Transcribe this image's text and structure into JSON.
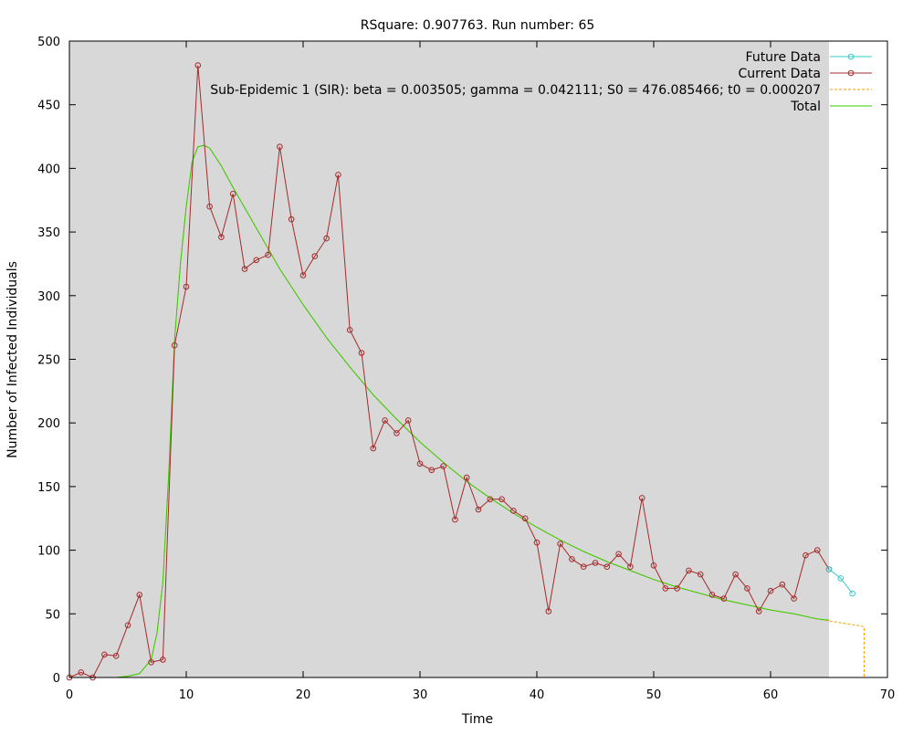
{
  "chart_data": {
    "type": "line",
    "title": "RSquare: 0.907763. Run number: 65",
    "xlabel": "Time",
    "ylabel": "Number of Infected Individuals",
    "xlim": [
      0,
      70
    ],
    "ylim": [
      0,
      500
    ],
    "xticks": [
      0,
      10,
      20,
      30,
      40,
      50,
      60,
      70
    ],
    "yticks": [
      0,
      50,
      100,
      150,
      200,
      250,
      300,
      350,
      400,
      450,
      500
    ],
    "grid": false,
    "legend_position": "top-right",
    "plot_background": "#d8d8d8",
    "shaded_x_range": [
      0,
      65
    ],
    "series": [
      {
        "name": "Future Data",
        "color": "#33cccc",
        "style": "line-points",
        "x": [
          65,
          66,
          67
        ],
        "y": [
          85,
          78,
          66
        ]
      },
      {
        "name": "Current Data",
        "color": "#a52a2a",
        "style": "line-points",
        "x": [
          0,
          1,
          2,
          3,
          4,
          5,
          6,
          7,
          8,
          9,
          10,
          11,
          12,
          13,
          14,
          15,
          16,
          17,
          18,
          19,
          20,
          21,
          22,
          23,
          24,
          25,
          26,
          27,
          28,
          29,
          30,
          31,
          32,
          33,
          34,
          35,
          36,
          37,
          38,
          39,
          40,
          41,
          42,
          43,
          44,
          45,
          46,
          47,
          48,
          49,
          50,
          51,
          52,
          53,
          54,
          55,
          56,
          57,
          58,
          59,
          60,
          61,
          62,
          63,
          64,
          65
        ],
        "y": [
          0,
          4,
          0,
          18,
          17,
          41,
          65,
          12,
          14,
          261,
          307,
          481,
          370,
          346,
          380,
          321,
          328,
          332,
          417,
          360,
          316,
          331,
          345,
          395,
          273,
          255,
          180,
          202,
          192,
          202,
          168,
          163,
          166,
          124,
          157,
          132,
          140,
          140,
          131,
          125,
          106,
          52,
          105,
          93,
          87,
          90,
          87,
          97,
          87,
          141,
          88,
          70,
          70,
          84,
          81,
          65,
          62,
          81,
          70,
          52,
          68,
          73,
          62,
          96,
          100,
          85
        ]
      },
      {
        "name": "Sub-Epidemic 1 (SIR): beta = 0.003505; gamma = 0.042111; S0 = 476.085466; t0 = 0.000207",
        "color": "#ff9900",
        "style": "dashed",
        "x": [
          4,
          5,
          6,
          7,
          7.5,
          8,
          8.5,
          9,
          9.5,
          10,
          10.5,
          11,
          11.5,
          12,
          13,
          14,
          16,
          18,
          20,
          22,
          24,
          26,
          28,
          30,
          32,
          34,
          36,
          38,
          40,
          42,
          44,
          46,
          48,
          50,
          52,
          54,
          56,
          58,
          60,
          62,
          64,
          66,
          68,
          68
        ],
        "y": [
          0,
          1,
          3,
          14,
          35,
          75,
          160,
          265,
          325,
          370,
          405,
          417,
          418,
          416,
          402,
          385,
          353,
          321,
          293,
          267,
          244,
          222,
          203,
          185,
          169,
          154,
          141,
          129,
          118,
          108,
          99,
          91,
          84,
          77,
          71,
          66,
          61,
          57,
          53,
          50,
          46,
          43,
          40,
          0
        ]
      },
      {
        "name": "Total",
        "color": "#33cc00",
        "style": "solid",
        "x": [
          4,
          5,
          6,
          7,
          7.5,
          8,
          8.5,
          9,
          9.5,
          10,
          10.5,
          11,
          11.5,
          12,
          13,
          14,
          16,
          18,
          20,
          22,
          24,
          26,
          28,
          30,
          32,
          34,
          36,
          38,
          40,
          42,
          44,
          46,
          48,
          50,
          52,
          54,
          56,
          58,
          60,
          62,
          64,
          65
        ],
        "y": [
          0,
          1,
          3,
          14,
          35,
          75,
          160,
          265,
          325,
          370,
          405,
          417,
          418,
          416,
          402,
          385,
          353,
          321,
          293,
          267,
          244,
          222,
          203,
          185,
          169,
          154,
          141,
          129,
          118,
          108,
          99,
          91,
          84,
          77,
          71,
          66,
          61,
          57,
          53,
          50,
          46,
          45
        ]
      }
    ]
  }
}
